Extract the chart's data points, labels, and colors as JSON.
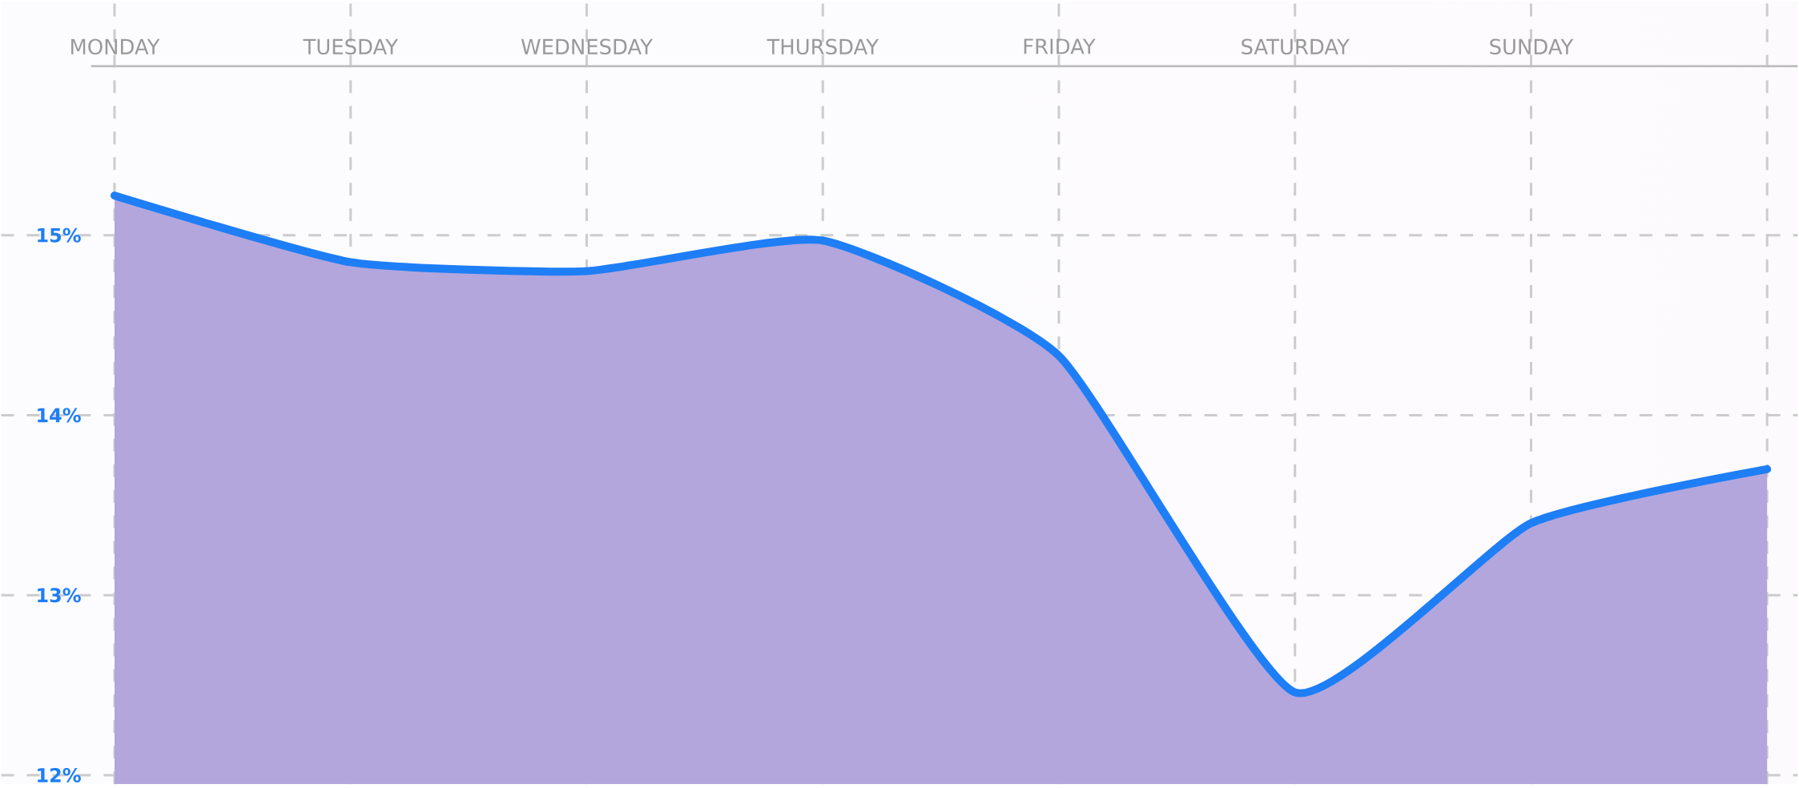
{
  "chart_data": {
    "type": "area",
    "categories": [
      "MONDAY",
      "TUESDAY",
      "WEDNESDAY",
      "THURSDAY",
      "FRIDAY",
      "SATURDAY",
      "SUNDAY",
      null
    ],
    "values": [
      15.22,
      14.85,
      14.8,
      14.97,
      14.33,
      12.46,
      13.4,
      13.7
    ],
    "color": "#1e7ef5",
    "ylim": [
      11.95,
      16.3
    ],
    "yticks": [
      {
        "value": 12,
        "label": "12%"
      },
      {
        "value": 13,
        "label": "13%"
      },
      {
        "value": 14,
        "label": "14%"
      },
      {
        "value": 15,
        "label": "15%"
      }
    ],
    "grid": true
  }
}
